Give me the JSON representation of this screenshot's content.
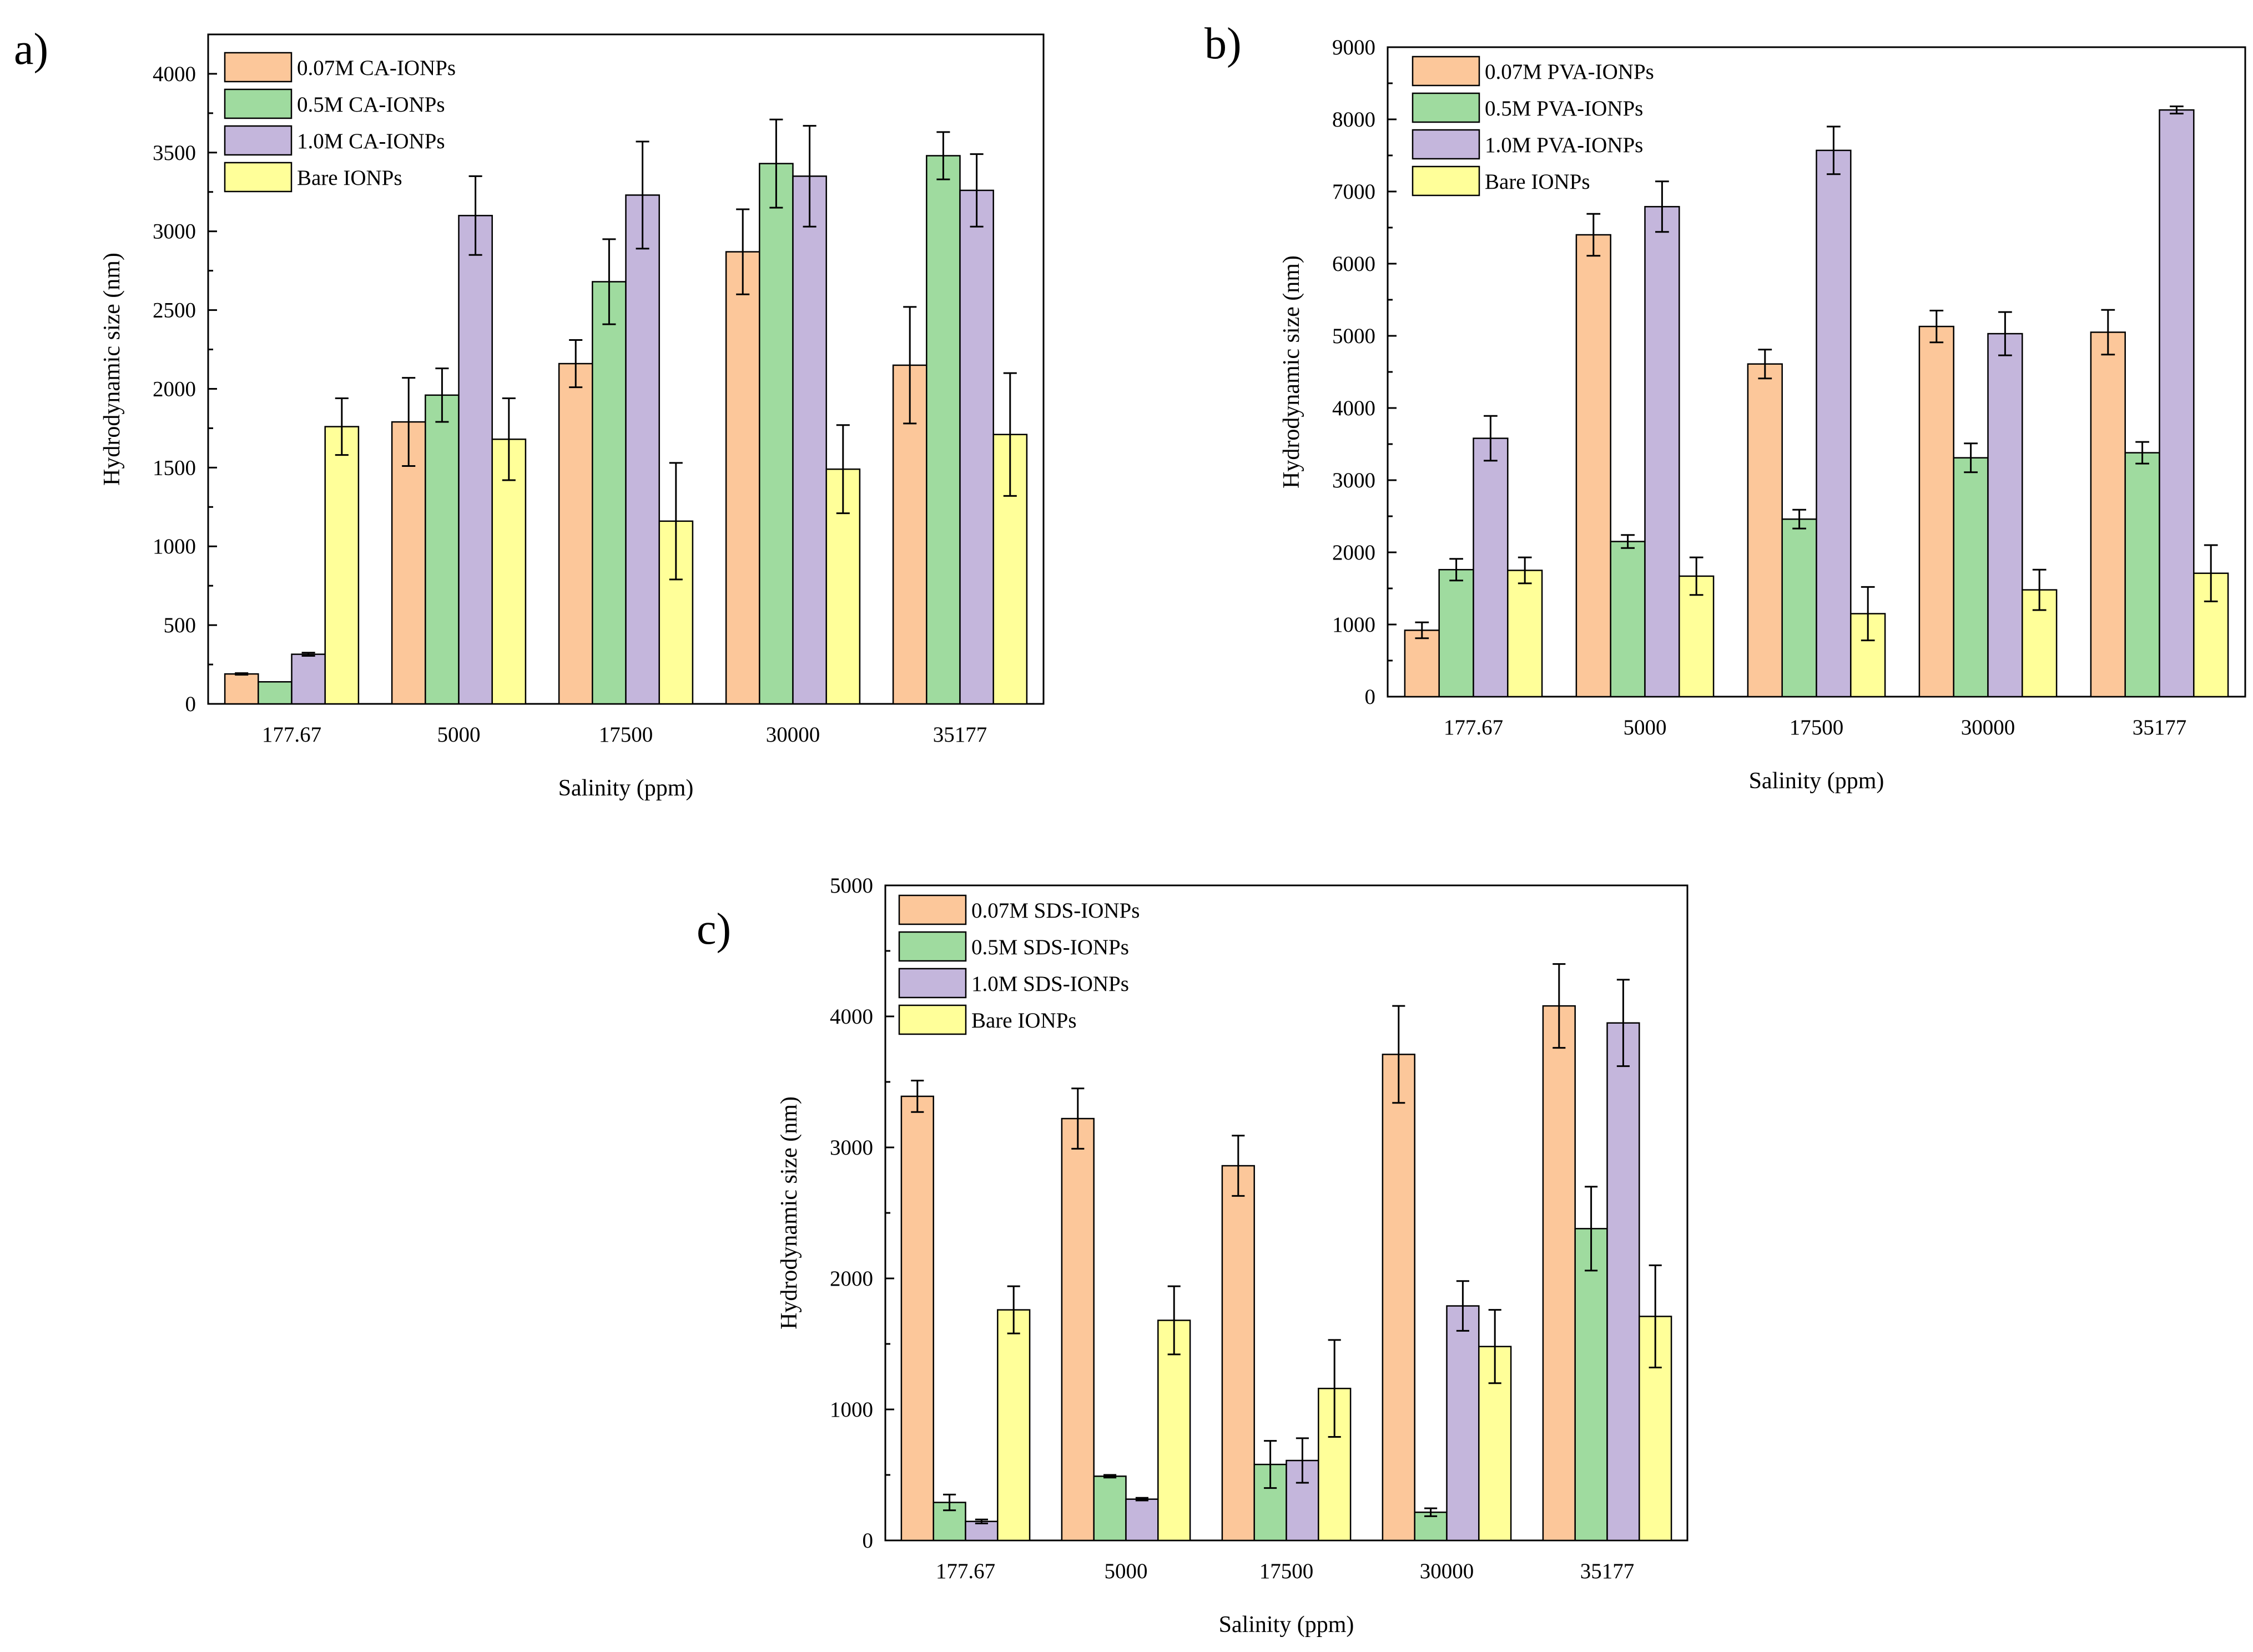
{
  "colors": {
    "series": [
      "#fcc79a",
      "#9fdb9f",
      "#c4b6dc",
      "#ffff99"
    ],
    "stroke": "#000000",
    "background": "#ffffff"
  },
  "chart_data": [
    {
      "panel": "a)",
      "type": "bar",
      "title": "",
      "xlabel": "Salinity (ppm)",
      "ylabel": "Hydrodynamic size (nm)",
      "categories": [
        "177.67",
        "5000",
        "17500",
        "30000",
        "35177"
      ],
      "ylim": [
        0,
        4250
      ],
      "yticks": [
        0,
        500,
        1000,
        1500,
        2000,
        2500,
        3000,
        3500,
        4000
      ],
      "legend_position": "top-left",
      "series": [
        {
          "name": "0.07M CA-IONPs",
          "values": [
            190,
            1790,
            2160,
            2870,
            2150
          ],
          "errors": [
            5,
            280,
            150,
            270,
            370
          ]
        },
        {
          "name": "0.5M CA-IONPs",
          "values": [
            140,
            1960,
            2680,
            3430,
            3480
          ],
          "errors": [
            0,
            170,
            270,
            280,
            150
          ]
        },
        {
          "name": "1.0M CA-IONPs",
          "values": [
            315,
            3100,
            3230,
            3350,
            3260
          ],
          "errors": [
            10,
            250,
            340,
            320,
            230
          ]
        },
        {
          "name": "Bare IONPs",
          "values": [
            1760,
            1680,
            1160,
            1490,
            1710
          ],
          "errors": [
            180,
            260,
            370,
            280,
            390
          ]
        }
      ]
    },
    {
      "panel": "b)",
      "type": "bar",
      "title": "",
      "xlabel": "Salinity (ppm)",
      "ylabel": "Hydrodynamic size (nm)",
      "categories": [
        "177.67",
        "5000",
        "17500",
        "30000",
        "35177"
      ],
      "ylim": [
        0,
        9000
      ],
      "yticks": [
        0,
        1000,
        2000,
        3000,
        4000,
        5000,
        6000,
        7000,
        8000,
        9000
      ],
      "legend_position": "top-left",
      "series": [
        {
          "name": "0.07M PVA-IONPs",
          "values": [
            920,
            6400,
            4610,
            5130,
            5050
          ],
          "errors": [
            110,
            290,
            200,
            220,
            310
          ]
        },
        {
          "name": "0.5M PVA-IONPs",
          "values": [
            1760,
            2150,
            2460,
            3310,
            3380
          ],
          "errors": [
            150,
            90,
            130,
            200,
            150
          ]
        },
        {
          "name": "1.0M PVA-IONPs",
          "values": [
            3580,
            6790,
            7570,
            5030,
            8130
          ],
          "errors": [
            310,
            350,
            330,
            300,
            50
          ]
        },
        {
          "name": "Bare IONPs",
          "values": [
            1750,
            1670,
            1150,
            1480,
            1710
          ],
          "errors": [
            180,
            260,
            370,
            280,
            390
          ]
        }
      ]
    },
    {
      "panel": "c)",
      "type": "bar",
      "title": "",
      "xlabel": "Salinity (ppm)",
      "ylabel": "Hydrodynamic size (nm)",
      "categories": [
        "177.67",
        "5000",
        "17500",
        "30000",
        "35177"
      ],
      "ylim": [
        0,
        5000
      ],
      "yticks": [
        0,
        1000,
        2000,
        3000,
        4000,
        5000
      ],
      "legend_position": "top-left",
      "series": [
        {
          "name": "0.07M SDS-IONPs",
          "values": [
            3390,
            3220,
            2860,
            3710,
            4080
          ],
          "errors": [
            120,
            230,
            230,
            370,
            320
          ]
        },
        {
          "name": "0.5M SDS-IONPs",
          "values": [
            290,
            490,
            580,
            215,
            2380
          ],
          "errors": [
            60,
            10,
            180,
            30,
            320
          ]
        },
        {
          "name": "1.0M SDS-IONPs",
          "values": [
            145,
            315,
            610,
            1790,
            3950
          ],
          "errors": [
            15,
            10,
            170,
            190,
            330
          ]
        },
        {
          "name": "Bare IONPs",
          "values": [
            1760,
            1680,
            1160,
            1480,
            1710
          ],
          "errors": [
            180,
            260,
            370,
            280,
            390
          ]
        }
      ]
    }
  ]
}
